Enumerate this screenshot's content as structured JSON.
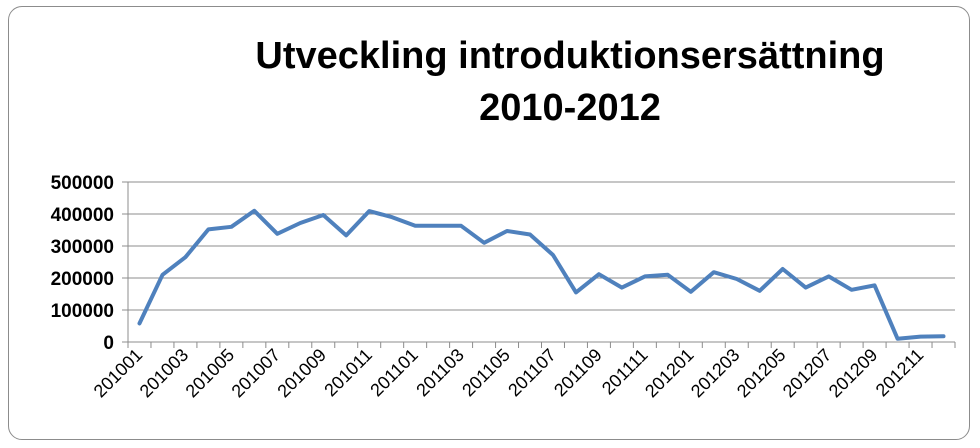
{
  "chart_data": {
    "type": "line",
    "title_line1": "Utveckling introduktionsersättning",
    "title_line2": "2010-2012",
    "xlabel": "",
    "ylabel": "",
    "ylim": [
      0,
      500000
    ],
    "yticks": [
      "0",
      "100000",
      "200000",
      "300000",
      "400000",
      "500000"
    ],
    "grid": true,
    "legend": "none",
    "line_color": "#4f81bd",
    "x": [
      "201001",
      "201002",
      "201003",
      "201004",
      "201005",
      "201006",
      "201007",
      "201008",
      "201009",
      "201010",
      "201011",
      "201012",
      "201101",
      "201102",
      "201103",
      "201104",
      "201105",
      "201106",
      "201107",
      "201108",
      "201109",
      "201110",
      "201111",
      "201112",
      "201201",
      "201202",
      "201203",
      "201204",
      "201205",
      "201206",
      "201207",
      "201208",
      "201209",
      "201210",
      "201211",
      "201212"
    ],
    "x_tick_labels": [
      "201001",
      "201003",
      "201005",
      "201007",
      "201009",
      "201011",
      "201101",
      "201103",
      "201105",
      "201107",
      "201109",
      "201111",
      "201201",
      "201203",
      "201205",
      "201207",
      "201209",
      "201211"
    ],
    "series": [
      {
        "values": [
          58000,
          210000,
          265000,
          352000,
          360000,
          410000,
          338000,
          372000,
          397000,
          333000,
          409000,
          390000,
          363000,
          363000,
          363000,
          310000,
          347000,
          336000,
          272000,
          155000,
          212000,
          170000,
          205000,
          210000,
          157000,
          218000,
          197000,
          160000,
          228000,
          170000,
          205000,
          163000,
          177000,
          10000,
          17000,
          18000
        ]
      }
    ]
  }
}
